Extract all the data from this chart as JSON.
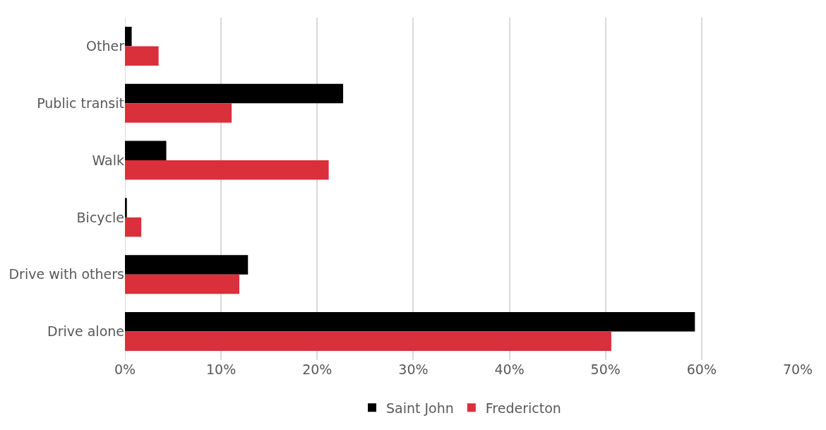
{
  "chart_data": {
    "type": "bar",
    "orientation": "horizontal",
    "categories": [
      "Other",
      "Public transit",
      "Walk",
      "Bicycle",
      "Drive with others",
      "Drive alone"
    ],
    "series": [
      {
        "name": "Saint John",
        "color": "#000000",
        "values": [
          0.7,
          22.7,
          4.3,
          0.2,
          12.8,
          59.3
        ]
      },
      {
        "name": "Fredericton",
        "color": "#d9303c",
        "values": [
          3.5,
          11.1,
          21.2,
          1.7,
          11.9,
          50.6
        ]
      }
    ],
    "xlim": [
      0,
      70
    ],
    "xticks": [
      {
        "value": 0,
        "label": "0%"
      },
      {
        "value": 10,
        "label": "10%"
      },
      {
        "value": 20,
        "label": "20%"
      },
      {
        "value": 30,
        "label": "30%"
      },
      {
        "value": 40,
        "label": "40%"
      },
      {
        "value": 50,
        "label": "50%"
      },
      {
        "value": 60,
        "label": "60%"
      },
      {
        "value": 70,
        "label": "70%"
      }
    ],
    "grid": "x",
    "legend": "bottom"
  }
}
